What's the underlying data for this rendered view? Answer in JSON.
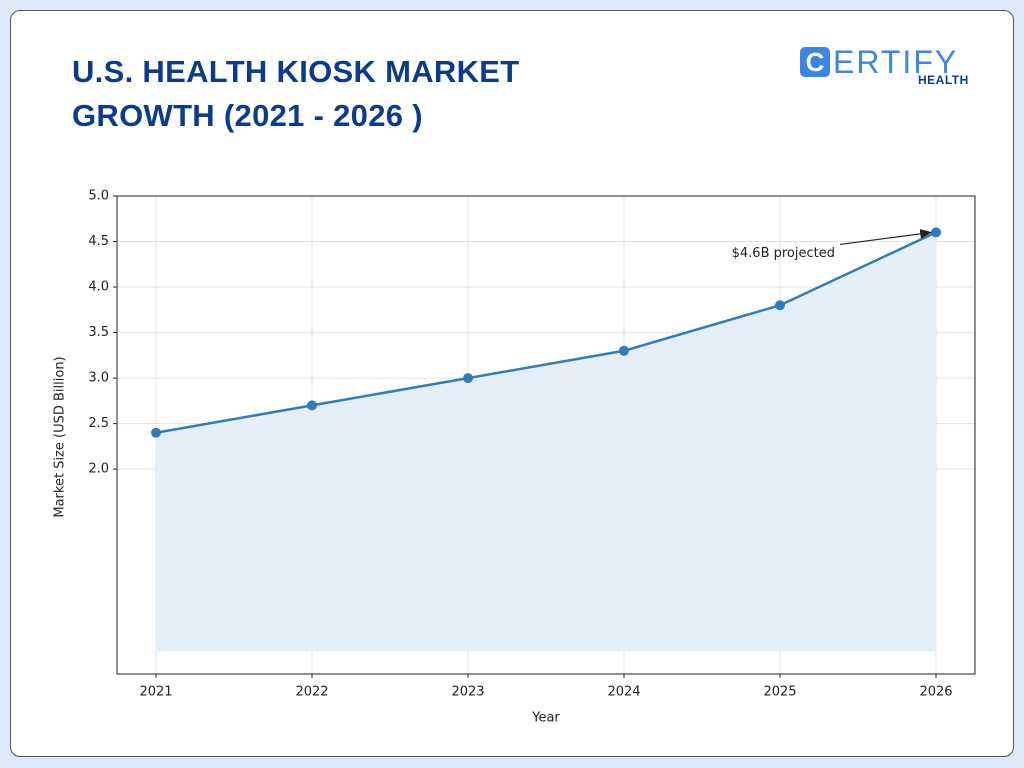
{
  "header": {
    "title": [
      "U.S. HEALTH KIOSK MARKET",
      "GROWTH (2021 - 2026 )"
    ],
    "logo": {
      "mark": "C",
      "word": "ERTIFY",
      "sub": "HEALTH"
    }
  },
  "chart_data": {
    "type": "line",
    "x": [
      2021,
      2022,
      2023,
      2024,
      2025,
      2026
    ],
    "series": [
      {
        "name": "Market Size",
        "color": "#2e7ebc",
        "values": [
          2.4,
          2.7,
          3.0,
          3.3,
          3.8,
          4.6
        ]
      }
    ],
    "area_fill": "#e6eef8",
    "x_label": "Year",
    "y_label": "Market Size (USD Billion)",
    "xlim": [
      2020.75,
      2026.25
    ],
    "xticks": [
      2021,
      2022,
      2023,
      2024,
      2025,
      2026
    ],
    "ylim": [
      -0.25,
      5.0
    ],
    "yticks": [
      {
        "value": 2.0,
        "label": "2.0"
      },
      {
        "value": 2.5,
        "label": "2.5"
      },
      {
        "value": 3.0,
        "label": "3.0"
      },
      {
        "value": 3.5,
        "label": "3.5"
      },
      {
        "value": 4.0,
        "label": "4.0"
      },
      {
        "value": 4.5,
        "label": "4.5"
      },
      {
        "value": 5.0,
        "label": "5.0"
      }
    ],
    "grid": true,
    "annotation": {
      "text": "$4.6B projected",
      "x": 2026,
      "y": 4.6
    }
  }
}
